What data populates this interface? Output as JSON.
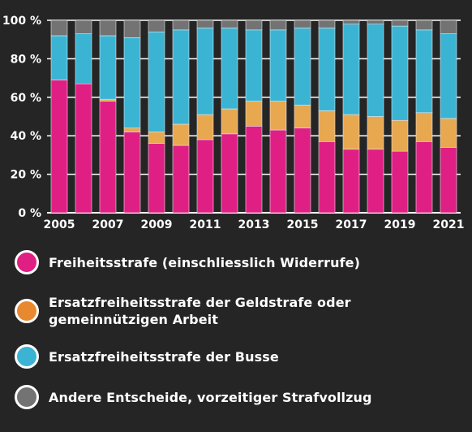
{
  "chart_data": {
    "type": "bar",
    "stacked": true,
    "categories": [
      "2005",
      "2006",
      "2007",
      "2008",
      "2009",
      "2010",
      "2011",
      "2012",
      "2013",
      "2014",
      "2015",
      "2016",
      "2017",
      "2018",
      "2019",
      "2020",
      "2021"
    ],
    "x_tick_labels": [
      "2005",
      "2007",
      "2009",
      "2011",
      "2013",
      "2015",
      "2017",
      "2019",
      "2021"
    ],
    "y_tick_labels": [
      "0 %",
      "20 %",
      "40 %",
      "60 %",
      "80 %",
      "100 %"
    ],
    "ylim": [
      0,
      100
    ],
    "grid": true,
    "legend_position": "bottom",
    "series": [
      {
        "name": "Freiheitsstrafe (einschliesslich Widerrufe)",
        "color": "#e01f84",
        "values": [
          69,
          67,
          58,
          42,
          36,
          35,
          38,
          41,
          45,
          43,
          44,
          37,
          33,
          33,
          32,
          37,
          34
        ]
      },
      {
        "name": "Ersatzfreiheitsstrafe der Geldstrafe oder\ngemeinnützigen Arbeit",
        "color": "#e8a850",
        "values": [
          0,
          0,
          1,
          2,
          6,
          11,
          13,
          13,
          13,
          15,
          12,
          16,
          18,
          17,
          16,
          15,
          15
        ]
      },
      {
        "name": "Ersatzfreiheitsstrafe der Busse",
        "color": "#3bb4d4",
        "values": [
          23,
          26,
          33,
          47,
          52,
          49,
          45,
          42,
          37,
          37,
          40,
          43,
          47,
          48,
          49,
          43,
          44
        ]
      },
      {
        "name": "Andere Entscheide, vorzeitiger Strafvollzug",
        "color": "#737373",
        "values": [
          8,
          7,
          8,
          9,
          6,
          5,
          4,
          4,
          5,
          5,
          4,
          4,
          2,
          2,
          3,
          5,
          7
        ]
      }
    ]
  },
  "legend": {
    "swatch_colors": [
      "#e01f84",
      "#e8892f",
      "#3bb4d4",
      "#737373"
    ]
  }
}
